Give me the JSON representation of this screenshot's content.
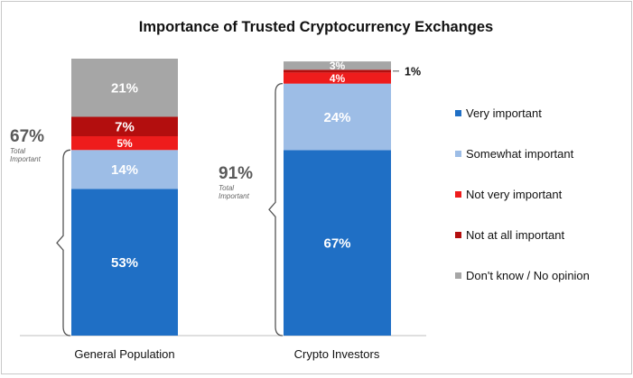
{
  "chart_data": {
    "type": "bar",
    "stacked": true,
    "title": "Importance of Trusted Cryptocurrency Exchanges",
    "categories": [
      "General Population",
      "Crypto Investors"
    ],
    "series": [
      {
        "name": "Very important",
        "color": "#1f6fc5",
        "values": [
          53,
          67
        ]
      },
      {
        "name": "Somewhat important",
        "color": "#9dbde6",
        "values": [
          14,
          24
        ]
      },
      {
        "name": "Not very important",
        "color": "#ee1c1c",
        "values": [
          5,
          4
        ]
      },
      {
        "name": "Not at all important",
        "color": "#b30e0e",
        "values": [
          7,
          1
        ]
      },
      {
        "name": "Don't know / No opinion",
        "color": "#a6a6a6",
        "values": [
          21,
          3
        ]
      }
    ],
    "data_labels": [
      [
        "53%",
        "14%",
        "5%",
        "7%",
        "21%"
      ],
      [
        "67%",
        "24%",
        "4%",
        "1%",
        "3%"
      ]
    ],
    "annotations": [
      {
        "value": "67%",
        "note": "Total Important"
      },
      {
        "value": "91%",
        "note": "Total Important"
      }
    ],
    "legend_position": "right",
    "grid": false
  }
}
